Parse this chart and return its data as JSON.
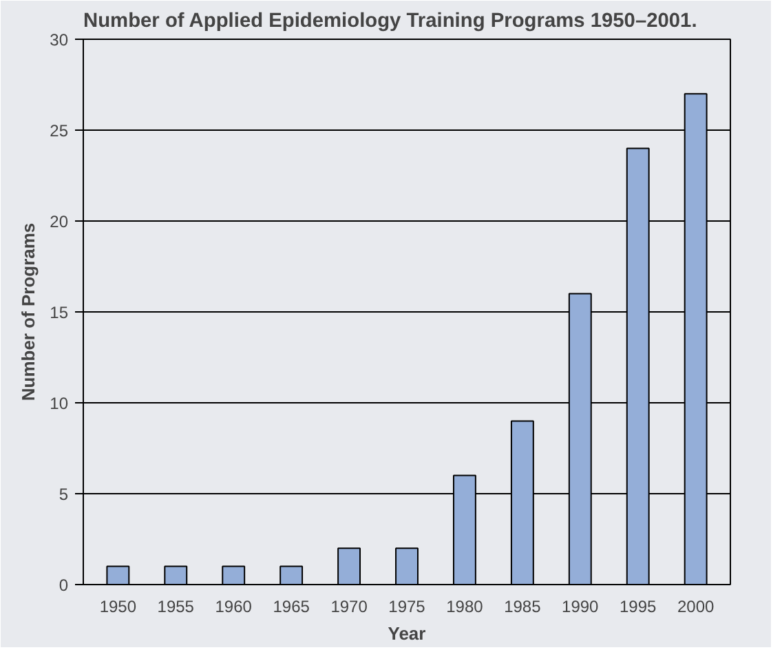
{
  "chart_data": {
    "type": "bar",
    "title": "Number of Applied Epidemiology Training Programs 1950–2001.",
    "xlabel": "Year",
    "ylabel": "Number of Programs",
    "categories": [
      "1950",
      "1955",
      "1960",
      "1965",
      "1970",
      "1975",
      "1980",
      "1985",
      "1990",
      "1995",
      "2000"
    ],
    "values": [
      1,
      1,
      1,
      1,
      2,
      2,
      6,
      9,
      16,
      24,
      27
    ],
    "color": "#94aed8",
    "ylim": [
      0,
      30
    ],
    "yticks": [
      0,
      5,
      10,
      15,
      20,
      25,
      30
    ],
    "grid": "y"
  }
}
